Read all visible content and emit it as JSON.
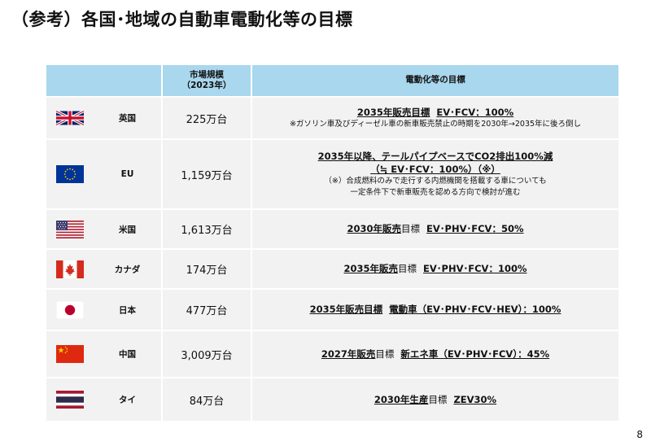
{
  "title": "（参考）各国･地域の自動車電動化等の目標",
  "page_number": "8",
  "header": {
    "market_line1": "市場規模",
    "market_line2": "（2023年）",
    "target": "電動化等の目標"
  },
  "rows": [
    {
      "country": "英国",
      "flag_icon": "uk-flag-icon",
      "market": "225万台",
      "target_a": "2035年販売目標",
      "target_b": "EV･FCV：100%",
      "note1": "※ガソリン車及びディーゼル車の新車販売禁止の時期を2030年→2035年に後ろ倒し"
    },
    {
      "country": "EU",
      "flag_icon": "eu-flag-icon",
      "market": "1,159万台",
      "target_line1": "2035年以降、テールパイプベースでCO2排出100%減",
      "target_line2": "（≒ EV･FCV：100%）（※）",
      "note1": "（※）合成燃料のみで走行する内燃機関を搭載する車についても",
      "note2": "一定条件下で新車販売を認める方向で検討が進む"
    },
    {
      "country": "米国",
      "flag_icon": "us-flag-icon",
      "market": "1,613万台",
      "target_a": "2030年販売",
      "target_a2": "目標",
      "target_b": "EV･PHV･FCV：50%"
    },
    {
      "country": "カナダ",
      "flag_icon": "canada-flag-icon",
      "market": "174万台",
      "target_a": "2035年販売",
      "target_a2": "目標",
      "target_b": "EV･PHV･FCV：100%"
    },
    {
      "country": "日本",
      "flag_icon": "japan-flag-icon",
      "market": "477万台",
      "target_a": "2035年販売目標",
      "target_b": "電動車（EV･PHV･FCV･HEV）：100%"
    },
    {
      "country": "中国",
      "flag_icon": "china-flag-icon",
      "market": "3,009万台",
      "target_a": "2027年販売",
      "target_a2": "目標",
      "target_b": "新エネ車（EV･PHV･FCV）：45%"
    },
    {
      "country": "タイ",
      "flag_icon": "thailand-flag-icon",
      "market": "84万台",
      "target_a": "2030年生産",
      "target_a2": "目標",
      "target_b": "ZEV30%"
    }
  ],
  "colors": {
    "header_bg": "#a9d7ee",
    "cell_bg": "#f2f2f2"
  }
}
